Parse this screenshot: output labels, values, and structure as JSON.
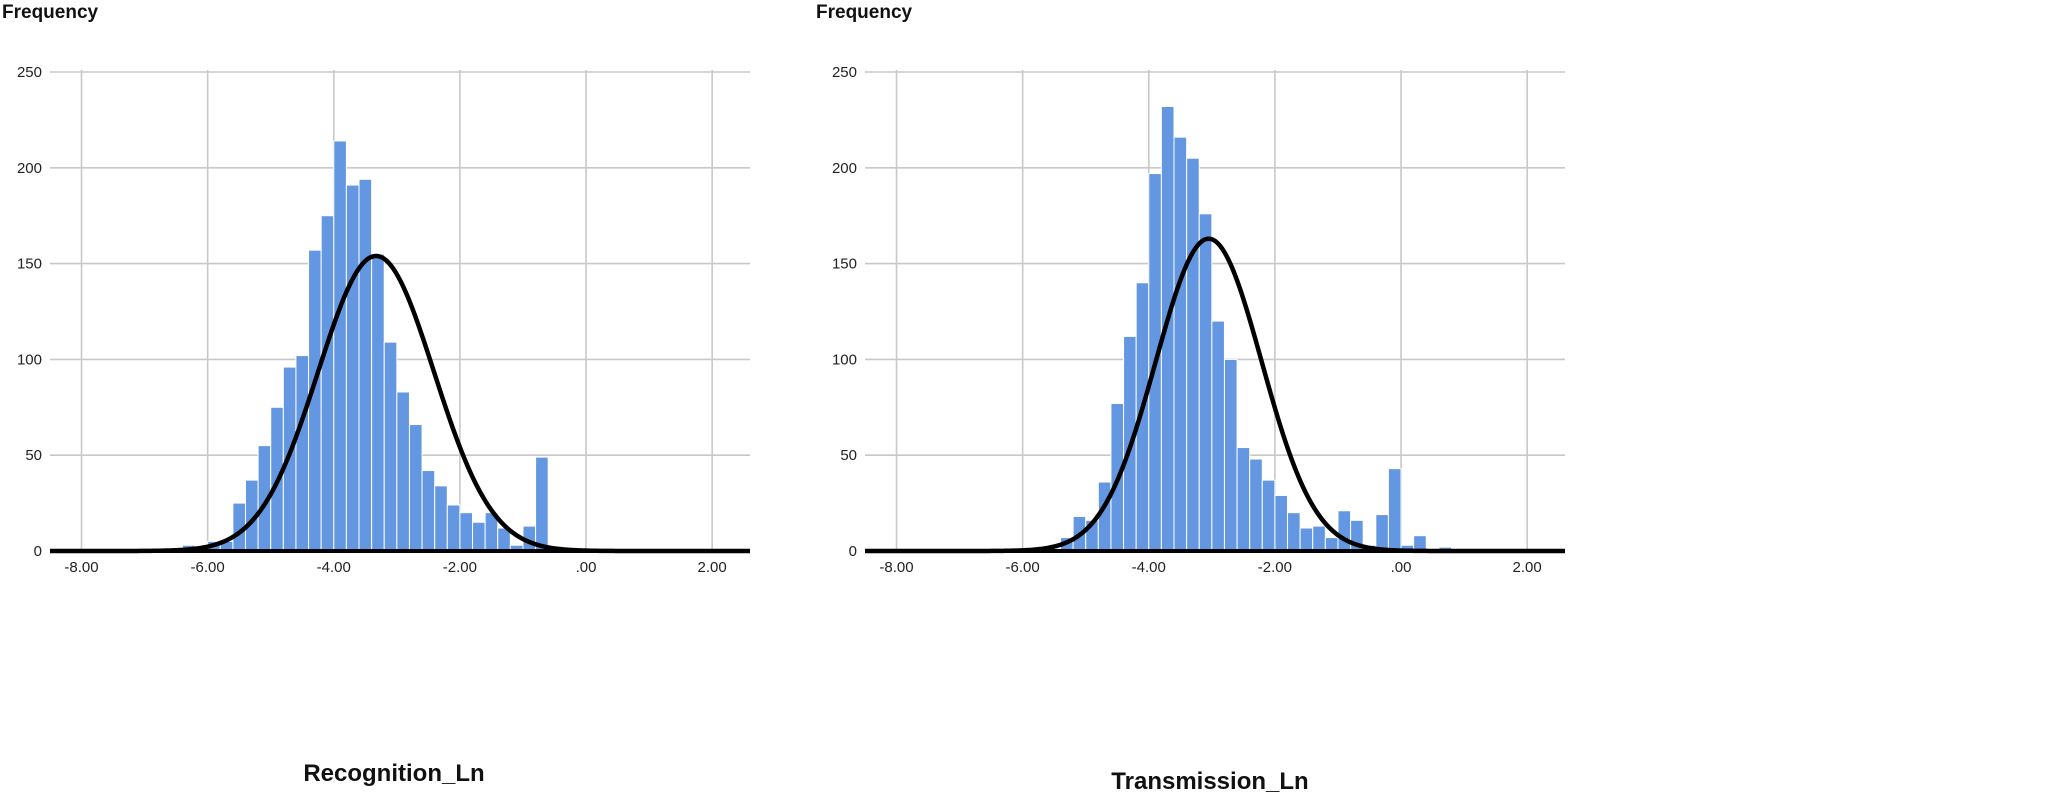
{
  "colors": {
    "bar": "#6497e2",
    "curve": "#000000",
    "grid": "#c8c8c8"
  },
  "chart_data": [
    {
      "type": "bar",
      "ylabel": "Frequency",
      "xlabel": "Recognition_Ln",
      "xlim": [
        -8.5,
        2.6
      ],
      "ylim": [
        0,
        250
      ],
      "grid": true,
      "xticks": [
        -8,
        -6,
        -4,
        -2,
        0,
        2
      ],
      "xtick_labels": [
        "-8.00",
        "-6.00",
        "-4.00",
        "-2.00",
        ".00",
        "2.00"
      ],
      "yticks": [
        0,
        50,
        100,
        150,
        200,
        250
      ],
      "ytick_labels": [
        "0",
        "50",
        "100",
        "150",
        "200",
        "250"
      ],
      "bin_start": -6.8,
      "bin_width": 0.2,
      "values": [
        1,
        1,
        3,
        2,
        5,
        5,
        25,
        37,
        55,
        75,
        96,
        102,
        157,
        175,
        214,
        191,
        194,
        155,
        109,
        83,
        66,
        42,
        34,
        24,
        20,
        15,
        20,
        12,
        3,
        13,
        49
      ],
      "normal_curve": {
        "mean": -3.33,
        "sd": 0.92,
        "peak": 154
      }
    },
    {
      "type": "bar",
      "ylabel": "Frequency",
      "xlabel": "Transmission_Ln",
      "xlim": [
        -8.5,
        2.6
      ],
      "ylim": [
        0,
        250
      ],
      "grid": true,
      "xticks": [
        -8,
        -6,
        -4,
        -2,
        0,
        2
      ],
      "xtick_labels": [
        "-8.00",
        "-6.00",
        "-4.00",
        "-2.00",
        ".00",
        "2.00"
      ],
      "yticks": [
        0,
        50,
        100,
        150,
        200,
        250
      ],
      "ytick_labels": [
        "0",
        "50",
        "100",
        "150",
        "200",
        "250"
      ],
      "bin_start": -6.0,
      "bin_width": 0.2,
      "values": [
        1,
        2,
        1,
        7,
        18,
        16,
        36,
        77,
        112,
        140,
        197,
        232,
        216,
        205,
        176,
        120,
        100,
        54,
        48,
        37,
        29,
        20,
        12,
        13,
        7,
        21,
        16,
        3,
        19,
        43,
        3,
        8,
        1,
        2
      ],
      "normal_curve": {
        "mean": -3.05,
        "sd": 0.84,
        "peak": 163
      }
    }
  ]
}
